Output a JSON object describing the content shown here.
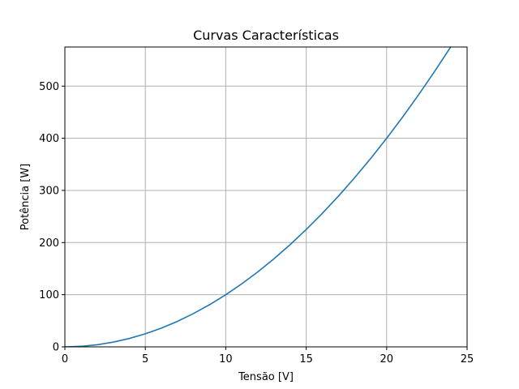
{
  "chart_data": {
    "type": "line",
    "title": "Curvas Características",
    "xlabel": "Tensão [V]",
    "ylabel": "Potência [W]",
    "xlim": [
      0,
      25
    ],
    "ylim": [
      0,
      575
    ],
    "x_ticks": [
      0,
      5,
      10,
      15,
      20,
      25
    ],
    "y_ticks": [
      0,
      100,
      200,
      300,
      400,
      500
    ],
    "grid": true,
    "series": [
      {
        "color": "#1f77b4",
        "x": [
          0,
          1,
          2,
          3,
          4,
          5,
          6,
          7,
          8,
          9,
          10,
          11,
          12,
          13,
          14,
          15,
          16,
          17,
          18,
          19,
          20,
          21,
          22,
          23,
          24
        ],
        "y": [
          0,
          1,
          4,
          9,
          16,
          25,
          36,
          49,
          64,
          81,
          100,
          121,
          144,
          169,
          196,
          225,
          256,
          289,
          324,
          361,
          400,
          441,
          484,
          529,
          576
        ]
      }
    ]
  }
}
